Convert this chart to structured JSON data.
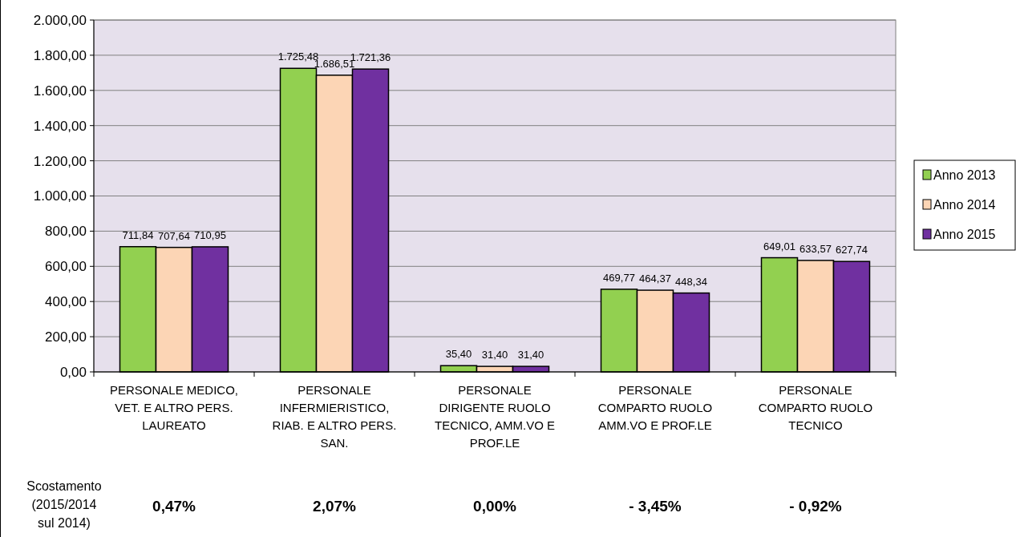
{
  "chart_data": {
    "type": "bar",
    "categories": [
      "PERSONALE MEDICO,\nVET. E ALTRO PERS.\nLAUREATO",
      "PERSONALE\nINFERMIERISTICO,\nRIAB. E ALTRO PERS.\nSAN.",
      "PERSONALE\nDIRIGENTE RUOLO\nTECNICO, AMM.VO E\nPROF.LE",
      "PERSONALE\nCOMPARTO RUOLO\nAMM.VO E PROF.LE",
      "PERSONALE\nCOMPARTO RUOLO\nTECNICO"
    ],
    "series": [
      {
        "name": "Anno 2013",
        "color": "#92d050",
        "values": [
          711.84,
          1725.48,
          35.4,
          469.77,
          649.01
        ],
        "value_labels": [
          "711,84",
          "1.725,48",
          "35,40",
          "469,77",
          "649,01"
        ]
      },
      {
        "name": "Anno 2014",
        "color": "#fcd5b5",
        "values": [
          707.64,
          1686.51,
          31.4,
          464.37,
          633.57
        ],
        "value_labels": [
          "707,64",
          "1.686,51",
          "31,40",
          "464,37",
          "633,57"
        ]
      },
      {
        "name": "Anno 2015",
        "color": "#7030a0",
        "values": [
          710.95,
          1721.36,
          31.4,
          448.34,
          627.74
        ],
        "value_labels": [
          "710,95",
          "1.721,36",
          "31,40",
          "448,34",
          "627,74"
        ]
      }
    ],
    "ylim": [
      0,
      2000
    ],
    "yticks": [
      {
        "value": 0,
        "label": "0,00"
      },
      {
        "value": 200,
        "label": "200,00"
      },
      {
        "value": 400,
        "label": "400,00"
      },
      {
        "value": 600,
        "label": "600,00"
      },
      {
        "value": 800,
        "label": "800,00"
      },
      {
        "value": 1000,
        "label": "1.000,00"
      },
      {
        "value": 1200,
        "label": "1.200,00"
      },
      {
        "value": 1400,
        "label": "1.400,00"
      },
      {
        "value": 1600,
        "label": "1.600,00"
      },
      {
        "value": 1800,
        "label": "1.800,00"
      },
      {
        "value": 2000,
        "label": "2.000,00"
      }
    ],
    "grid": "y",
    "legend": "right",
    "annotations": [
      "Scostamento\n(2015/2014\nsul 2014)",
      "0,47%",
      "2,07%",
      "0,00%",
      "- 3,45%",
      "- 0,92%"
    ]
  }
}
